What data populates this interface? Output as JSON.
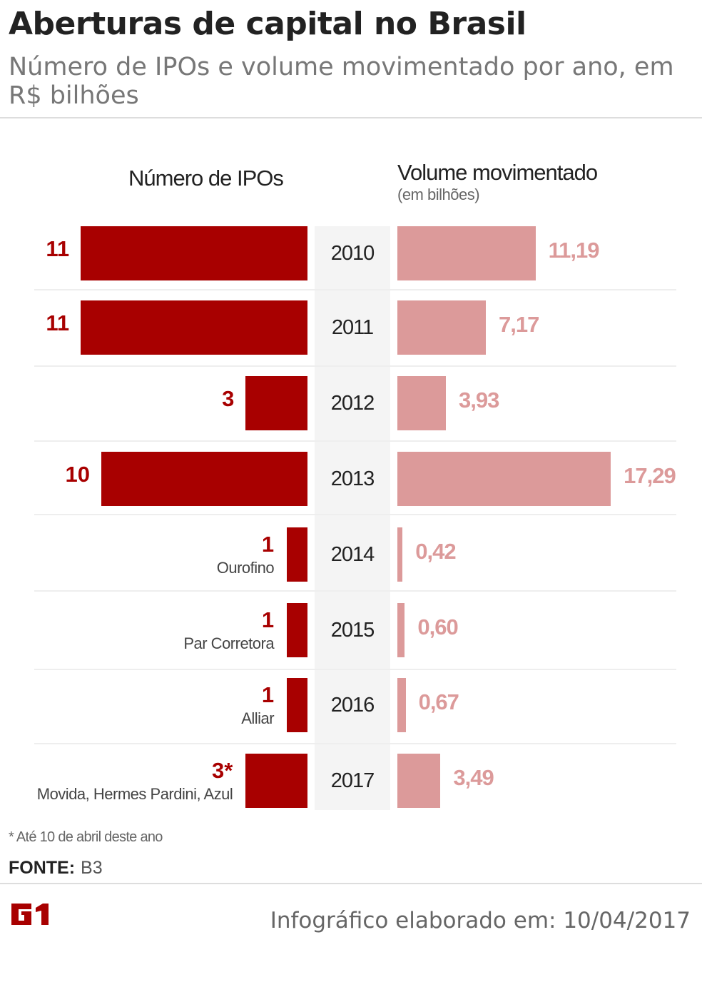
{
  "title": "Aberturas de capital no Brasil",
  "subtitle": "Número de IPOs e volume movimentado por ano, em R$ bilhões",
  "colors": {
    "ipos": "#a80000",
    "volume": "#dc9a9a"
  },
  "chart_data": {
    "type": "bar",
    "orientation": "horizontal, butterfly",
    "categories": [
      "2010",
      "2011",
      "2012",
      "2013",
      "2014",
      "2015",
      "2016",
      "2017"
    ],
    "left_header": "Número de IPOs",
    "right_header": "Volume movimentado",
    "right_subheader": "(em bilhões)",
    "series": [
      {
        "name": "Número de IPOs",
        "values": [
          11,
          11,
          3,
          10,
          1,
          1,
          1,
          3
        ],
        "labels": [
          "11",
          "11",
          "3",
          "10",
          "1",
          "1",
          "1",
          "3*"
        ],
        "notes": [
          "",
          "",
          "",
          "",
          "Ourofino",
          "Par Corretora",
          "Alliar",
          "Movida, Hermes Pardini, Azul"
        ]
      },
      {
        "name": "Volume movimentado",
        "values": [
          11.19,
          7.17,
          3.93,
          17.29,
          0.42,
          0.6,
          0.67,
          3.49
        ],
        "labels": [
          "11,19",
          "7,17",
          "3,93",
          "17,29",
          "0,42",
          "0,60",
          "0,67",
          "3,49"
        ]
      }
    ]
  },
  "footnote": "* Até 10 de abril deste ano",
  "source_label": "FONTE:",
  "source_value": "B3",
  "logo": "G1",
  "credit": "Infográfico elaborado em: 10/04/2017"
}
